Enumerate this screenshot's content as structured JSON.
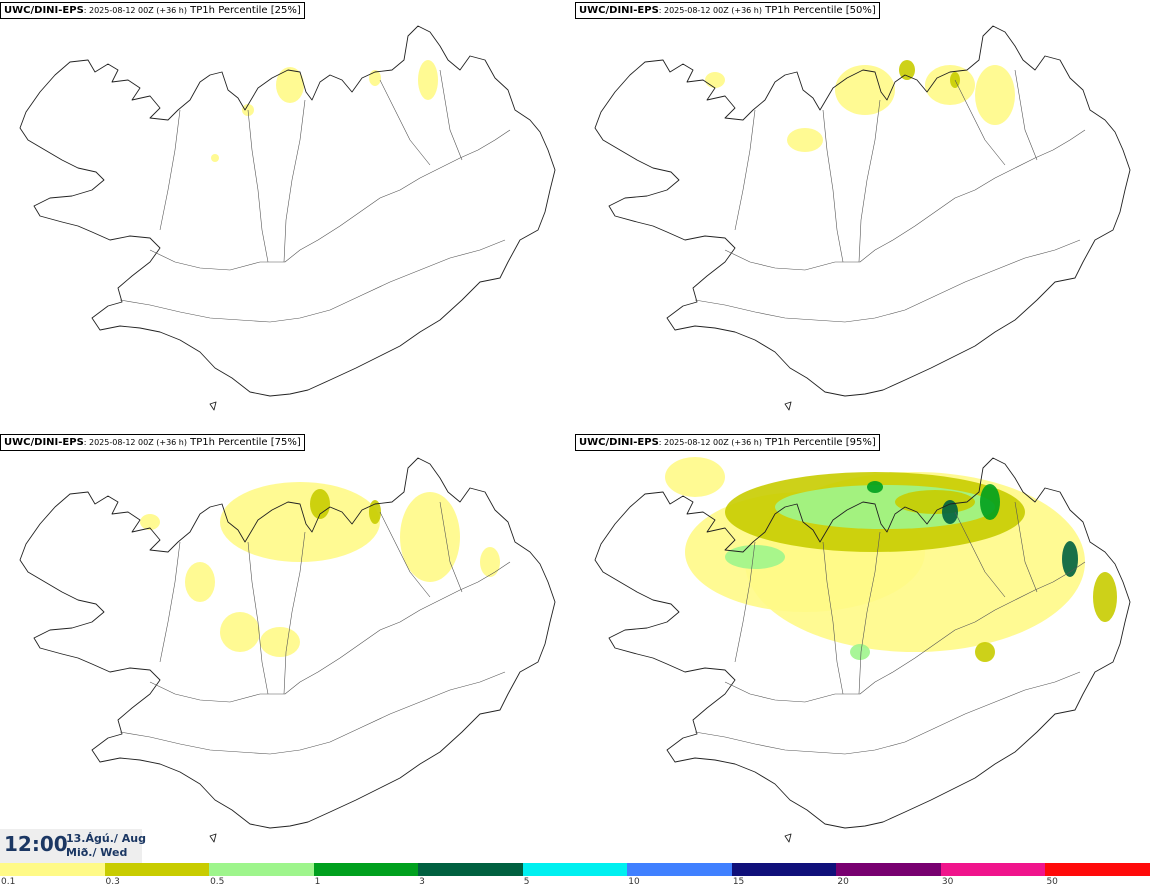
{
  "panels": [
    {
      "model": "UWC/DINI-EPS",
      "run": ": 2025-08-12 00Z (+36 h)",
      "field": "TP1h Percentile [25%]",
      "coverage": "low"
    },
    {
      "model": "UWC/DINI-EPS",
      "run": ": 2025-08-12 00Z (+36 h)",
      "field": "TP1h Percentile [50%]",
      "coverage": "moderate"
    },
    {
      "model": "UWC/DINI-EPS",
      "run": ": 2025-08-12 00Z (+36 h)",
      "field": "TP1h Percentile [75%]",
      "coverage": "high"
    },
    {
      "model": "UWC/DINI-EPS",
      "run": ": 2025-08-12 00Z (+36 h)",
      "field": "TP1h Percentile [95%]",
      "coverage": "very-high"
    }
  ],
  "valid_time": {
    "time": "12:00",
    "date_is": "13.Ágú./ Aug",
    "day": "Mið./ Wed"
  },
  "legend": {
    "colors": [
      "#fffa87",
      "#c8cc00",
      "#9ef58c",
      "#00a01e",
      "#006040",
      "#00f0f0",
      "#4080ff",
      "#10107a",
      "#780070",
      "#f0148c",
      "#ff0a0a"
    ],
    "labels": [
      "0.1",
      "0.3",
      "0.5",
      "1",
      "3",
      "5",
      "10",
      "15",
      "20",
      "30",
      "50"
    ]
  }
}
